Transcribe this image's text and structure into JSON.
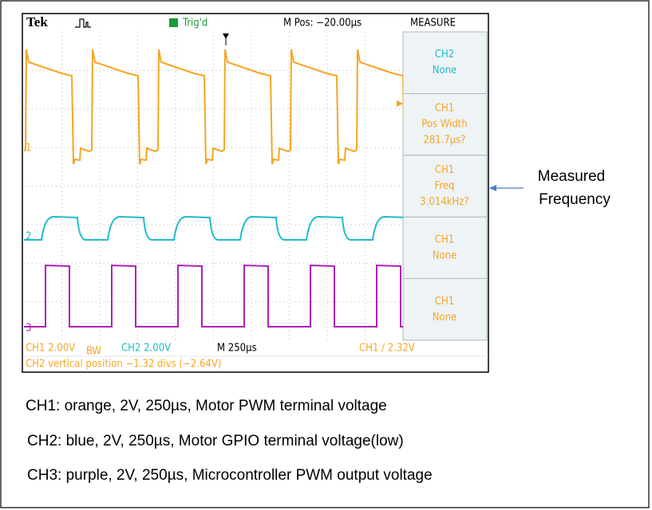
{
  "header": {
    "brand": "Tek",
    "trigger": "Trig'd",
    "position": "M Pos: −20.00µs",
    "menu_title": "MEASURE"
  },
  "menu": [
    {
      "lines": [
        "CH2",
        "None"
      ]
    },
    {
      "lines": [
        "CH1",
        "Pos Width",
        "281.7µs?"
      ]
    },
    {
      "lines": [
        "CH1",
        "Freq",
        "3.014kHz?"
      ]
    },
    {
      "lines": [
        "CH1",
        "None"
      ]
    },
    {
      "lines": [
        "CH1",
        "None"
      ]
    }
  ],
  "status": {
    "ch1": "CH1 2.00V",
    "ch1_bw": "BW",
    "ch2": "CH2 2.00V",
    "timebase": "M 250µs",
    "trigger": "CH1 ∕ 2.32V",
    "message": "CH2 vertical position −1.32 divs (−2.64V)"
  },
  "channel_markers": [
    "1",
    "2",
    "3"
  ],
  "annotation": {
    "lines": [
      "Measured",
      "Frequency"
    ]
  },
  "captions": [
    "CH1: orange, 2V, 250µs, Motor PWM terminal voltage",
    "CH2: blue, 2V, 250µs, Motor GPIO terminal voltage(low)",
    "CH3: purple, 2V, 250µs, Microcontroller PWM output voltage"
  ]
}
